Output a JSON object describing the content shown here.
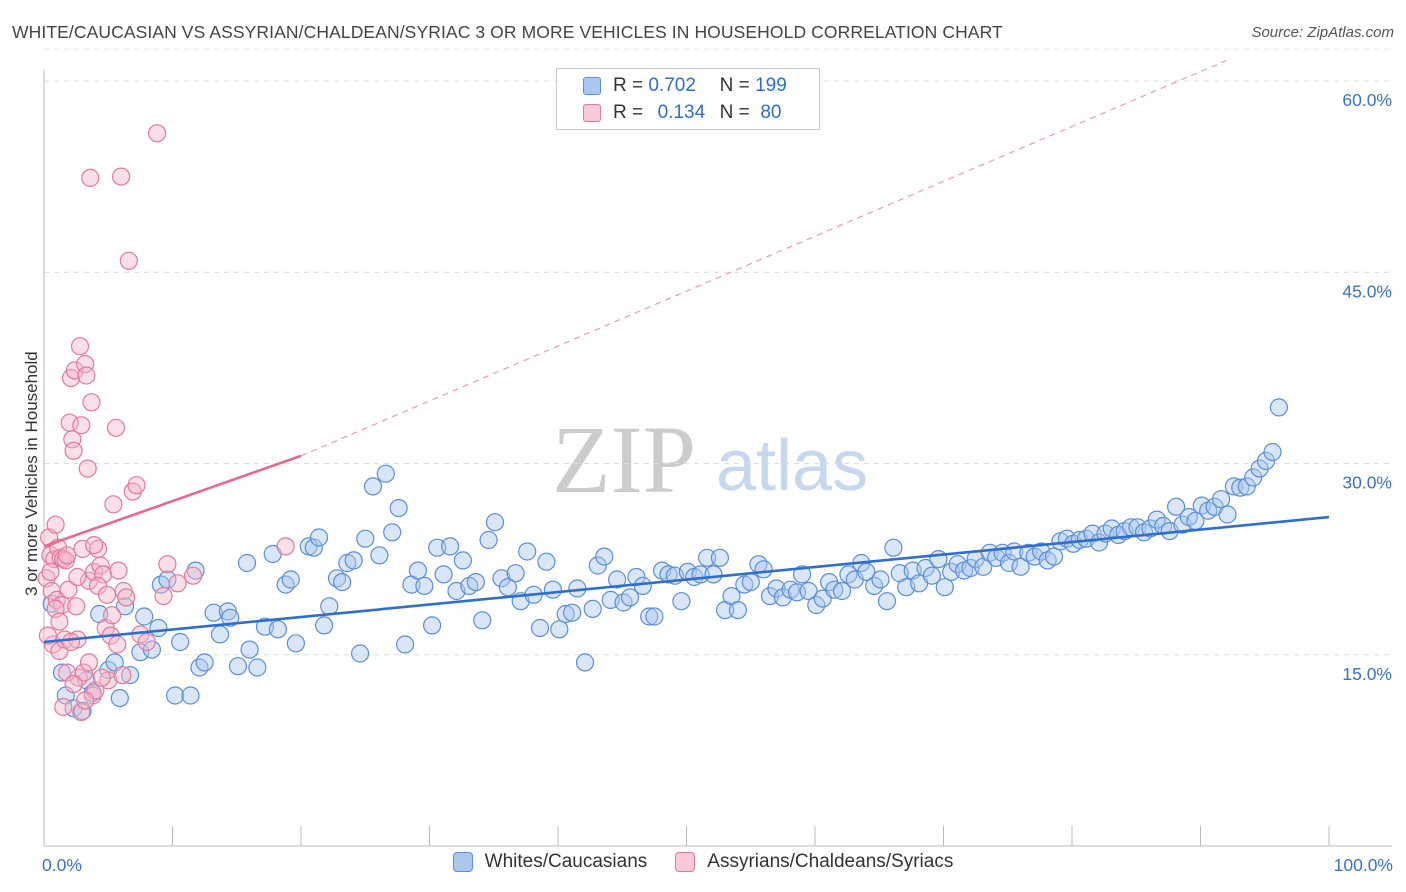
{
  "title": "WHITE/CAUCASIAN VS ASSYRIAN/CHALDEAN/SYRIAC 3 OR MORE VEHICLES IN HOUSEHOLD CORRELATION CHART",
  "source": "Source: ZipAtlas.com",
  "watermark": {
    "zip": "ZIP",
    "atlas": "atlas"
  },
  "legend_top": [
    {
      "r_label": "R =",
      "r_value": "0.702",
      "n_label": "N =",
      "n_value": "199"
    },
    {
      "r_label": "R =",
      "r_value": "0.134",
      "n_label": "N =",
      "n_value": "80"
    }
  ],
  "chart_data": {
    "type": "scatter",
    "title": "WHITE/CAUCASIAN VS ASSYRIAN/CHALDEAN/SYRIAC 3 OR MORE VEHICLES IN HOUSEHOLD CORRELATION CHART",
    "xlabel": "",
    "ylabel": "3 or more Vehicles in Household",
    "xlim": [
      0,
      100
    ],
    "ylim": [
      0,
      64
    ],
    "x_tick_labels": [
      "0.0%",
      "100.0%"
    ],
    "y_ticks": [
      15,
      30,
      45,
      60
    ],
    "y_tick_labels": [
      "15.0%",
      "30.0%",
      "45.0%",
      "60.0%"
    ],
    "grid": "horizontal dashed",
    "legend_position": "bottom",
    "series": [
      {
        "name": "Whites/Caucasians",
        "color": "#5b8ed8",
        "fill": "#aac7ef",
        "trend": {
          "x": [
            0,
            100
          ],
          "y": [
            16.0,
            25.8
          ],
          "style": "solid"
        },
        "points": [
          [
            0.6,
            19.0
          ],
          [
            1.4,
            13.6
          ],
          [
            1.7,
            11.8
          ],
          [
            2.3,
            10.8
          ],
          [
            3.0,
            10.6
          ],
          [
            3.3,
            13.0
          ],
          [
            3.8,
            12.0
          ],
          [
            4.3,
            18.2
          ],
          [
            5.0,
            13.8
          ],
          [
            5.5,
            14.4
          ],
          [
            5.9,
            11.6
          ],
          [
            6.3,
            18.8
          ],
          [
            6.7,
            13.4
          ],
          [
            7.5,
            15.2
          ],
          [
            7.8,
            18.0
          ],
          [
            8.4,
            15.4
          ],
          [
            8.9,
            17.1
          ],
          [
            9.1,
            20.5
          ],
          [
            9.6,
            20.9
          ],
          [
            10.2,
            11.8
          ],
          [
            10.6,
            16.0
          ],
          [
            11.4,
            11.8
          ],
          [
            11.8,
            21.6
          ],
          [
            12.1,
            14.0
          ],
          [
            12.5,
            14.4
          ],
          [
            13.2,
            18.3
          ],
          [
            13.7,
            16.6
          ],
          [
            14.3,
            18.4
          ],
          [
            14.5,
            17.9
          ],
          [
            15.1,
            14.1
          ],
          [
            15.8,
            22.2
          ],
          [
            16.0,
            15.4
          ],
          [
            16.6,
            14.0
          ],
          [
            17.2,
            17.2
          ],
          [
            17.8,
            22.9
          ],
          [
            18.2,
            17.0
          ],
          [
            18.8,
            20.5
          ],
          [
            19.2,
            20.9
          ],
          [
            19.6,
            15.9
          ],
          [
            20.6,
            23.5
          ],
          [
            21.0,
            23.4
          ],
          [
            21.4,
            24.2
          ],
          [
            21.8,
            17.3
          ],
          [
            22.2,
            18.8
          ],
          [
            22.8,
            21.0
          ],
          [
            23.2,
            20.7
          ],
          [
            23.6,
            22.2
          ],
          [
            24.1,
            22.4
          ],
          [
            24.6,
            15.1
          ],
          [
            25.0,
            24.1
          ],
          [
            25.6,
            28.2
          ],
          [
            26.1,
            22.8
          ],
          [
            26.6,
            29.2
          ],
          [
            27.1,
            24.6
          ],
          [
            27.6,
            26.5
          ],
          [
            28.1,
            15.8
          ],
          [
            28.6,
            20.5
          ],
          [
            29.1,
            21.6
          ],
          [
            29.6,
            20.4
          ],
          [
            30.2,
            17.3
          ],
          [
            30.6,
            23.4
          ],
          [
            31.1,
            21.3
          ],
          [
            31.6,
            23.5
          ],
          [
            32.1,
            20.0
          ],
          [
            32.6,
            22.4
          ],
          [
            33.1,
            20.4
          ],
          [
            33.6,
            20.7
          ],
          [
            34.1,
            17.7
          ],
          [
            34.6,
            24.0
          ],
          [
            35.1,
            25.4
          ],
          [
            35.6,
            21.0
          ],
          [
            36.1,
            20.3
          ],
          [
            36.7,
            21.4
          ],
          [
            37.1,
            19.2
          ],
          [
            37.6,
            23.1
          ],
          [
            38.1,
            19.7
          ],
          [
            38.6,
            17.1
          ],
          [
            39.1,
            22.3
          ],
          [
            39.6,
            20.1
          ],
          [
            40.1,
            17.0
          ],
          [
            40.6,
            18.2
          ],
          [
            41.1,
            18.3
          ],
          [
            41.5,
            20.2
          ],
          [
            42.1,
            14.4
          ],
          [
            42.7,
            18.6
          ],
          [
            43.1,
            22.0
          ],
          [
            43.6,
            22.7
          ],
          [
            44.1,
            19.3
          ],
          [
            44.6,
            20.9
          ],
          [
            45.1,
            19.1
          ],
          [
            45.6,
            19.5
          ],
          [
            46.1,
            21.1
          ],
          [
            46.6,
            20.4
          ],
          [
            47.1,
            18.0
          ],
          [
            47.5,
            18.0
          ],
          [
            48.1,
            21.6
          ],
          [
            48.6,
            21.3
          ],
          [
            49.1,
            21.2
          ],
          [
            49.6,
            19.2
          ],
          [
            50.1,
            21.5
          ],
          [
            50.6,
            21.1
          ],
          [
            51.1,
            21.3
          ],
          [
            51.6,
            22.6
          ],
          [
            52.1,
            21.3
          ],
          [
            52.6,
            22.6
          ],
          [
            53.0,
            18.5
          ],
          [
            53.5,
            19.6
          ],
          [
            54.0,
            18.5
          ],
          [
            54.5,
            20.5
          ],
          [
            55.0,
            20.7
          ],
          [
            55.6,
            22.1
          ],
          [
            56.0,
            21.7
          ],
          [
            56.5,
            19.6
          ],
          [
            57.0,
            20.2
          ],
          [
            57.5,
            19.5
          ],
          [
            58.1,
            20.1
          ],
          [
            58.6,
            19.9
          ],
          [
            59.0,
            21.3
          ],
          [
            59.5,
            20.0
          ],
          [
            60.1,
            18.9
          ],
          [
            60.6,
            19.4
          ],
          [
            61.1,
            20.7
          ],
          [
            61.5,
            20.1
          ],
          [
            62.1,
            20.0
          ],
          [
            62.6,
            21.3
          ],
          [
            63.1,
            20.9
          ],
          [
            63.6,
            22.2
          ],
          [
            64.0,
            21.5
          ],
          [
            64.6,
            20.4
          ],
          [
            65.1,
            20.9
          ],
          [
            65.6,
            19.2
          ],
          [
            66.1,
            23.4
          ],
          [
            66.6,
            21.4
          ],
          [
            67.1,
            20.3
          ],
          [
            67.6,
            21.6
          ],
          [
            68.1,
            20.6
          ],
          [
            68.6,
            21.8
          ],
          [
            69.1,
            21.2
          ],
          [
            69.6,
            22.5
          ],
          [
            70.1,
            20.3
          ],
          [
            70.6,
            21.5
          ],
          [
            71.1,
            22.1
          ],
          [
            71.6,
            21.6
          ],
          [
            72.1,
            21.8
          ],
          [
            72.5,
            22.5
          ],
          [
            73.1,
            21.9
          ],
          [
            73.6,
            23.0
          ],
          [
            74.1,
            22.6
          ],
          [
            74.6,
            23.0
          ],
          [
            75.1,
            22.2
          ],
          [
            75.5,
            23.1
          ],
          [
            76.0,
            21.9
          ],
          [
            76.6,
            23.0
          ],
          [
            77.1,
            22.7
          ],
          [
            77.6,
            23.1
          ],
          [
            78.1,
            22.4
          ],
          [
            78.6,
            22.7
          ],
          [
            79.1,
            23.9
          ],
          [
            79.6,
            24.1
          ],
          [
            80.1,
            23.7
          ],
          [
            80.6,
            24.0
          ],
          [
            81.1,
            24.1
          ],
          [
            81.6,
            24.5
          ],
          [
            82.1,
            23.8
          ],
          [
            82.6,
            24.5
          ],
          [
            83.1,
            24.9
          ],
          [
            83.6,
            24.4
          ],
          [
            84.1,
            24.7
          ],
          [
            84.6,
            25.0
          ],
          [
            85.1,
            25.0
          ],
          [
            85.6,
            24.6
          ],
          [
            86.1,
            24.9
          ],
          [
            86.6,
            25.6
          ],
          [
            87.1,
            25.1
          ],
          [
            87.6,
            24.7
          ],
          [
            88.1,
            26.6
          ],
          [
            88.6,
            25.2
          ],
          [
            89.1,
            25.8
          ],
          [
            89.6,
            25.5
          ],
          [
            90.1,
            26.7
          ],
          [
            90.6,
            26.3
          ],
          [
            91.1,
            26.6
          ],
          [
            91.6,
            27.2
          ],
          [
            92.1,
            26.0
          ],
          [
            92.6,
            28.2
          ],
          [
            93.1,
            28.1
          ],
          [
            93.6,
            28.2
          ],
          [
            94.1,
            28.9
          ],
          [
            94.6,
            29.6
          ],
          [
            95.1,
            30.2
          ],
          [
            95.6,
            30.9
          ],
          [
            96.1,
            34.4
          ]
        ]
      },
      {
        "name": "Assyrians/Chaldeans/Syriacs",
        "color": "#e07b9b",
        "fill": "#f5b7ca",
        "trend": {
          "x": [
            0,
            20
          ],
          "y": [
            23.5,
            30.6
          ],
          "style": "solid",
          "extension": {
            "x": [
              20,
              92
            ],
            "y": [
              30.6,
              61.6
            ],
            "style": "dashed"
          }
        },
        "points": [
          [
            0.2,
            21.0
          ],
          [
            0.4,
            24.2
          ],
          [
            0.5,
            22.8
          ],
          [
            0.6,
            20.0
          ],
          [
            0.7,
            15.8
          ],
          [
            0.8,
            22.5
          ],
          [
            0.9,
            25.2
          ],
          [
            1.0,
            19.3
          ],
          [
            1.1,
            23.4
          ],
          [
            1.2,
            15.3
          ],
          [
            1.3,
            22.6
          ],
          [
            1.4,
            18.9
          ],
          [
            1.5,
            22.5
          ],
          [
            1.6,
            16.2
          ],
          [
            1.7,
            22.4
          ],
          [
            1.8,
            22.8
          ],
          [
            1.9,
            20.1
          ],
          [
            2.0,
            33.2
          ],
          [
            2.1,
            36.7
          ],
          [
            2.2,
            31.9
          ],
          [
            2.3,
            31.0
          ],
          [
            2.4,
            37.3
          ],
          [
            2.5,
            18.8
          ],
          [
            2.6,
            16.2
          ],
          [
            2.7,
            13.2
          ],
          [
            2.8,
            39.2
          ],
          [
            2.9,
            33.0
          ],
          [
            3.0,
            23.3
          ],
          [
            3.1,
            13.6
          ],
          [
            3.2,
            37.8
          ],
          [
            3.3,
            36.9
          ],
          [
            3.4,
            29.6
          ],
          [
            3.5,
            20.8
          ],
          [
            3.6,
            52.4
          ],
          [
            3.7,
            34.8
          ],
          [
            3.8,
            11.8
          ],
          [
            3.9,
            21.5
          ],
          [
            4.0,
            12.2
          ],
          [
            4.2,
            23.3
          ],
          [
            4.4,
            22.0
          ],
          [
            4.6,
            21.3
          ],
          [
            4.8,
            17.1
          ],
          [
            5.0,
            13.0
          ],
          [
            5.2,
            16.5
          ],
          [
            5.4,
            26.8
          ],
          [
            5.6,
            32.8
          ],
          [
            5.8,
            21.6
          ],
          [
            6.0,
            52.5
          ],
          [
            6.2,
            20.0
          ],
          [
            6.4,
            19.5
          ],
          [
            6.6,
            45.9
          ],
          [
            6.9,
            27.8
          ],
          [
            7.2,
            28.3
          ],
          [
            7.5,
            16.6
          ],
          [
            8.0,
            16.0
          ],
          [
            8.8,
            55.9
          ],
          [
            9.3,
            19.6
          ],
          [
            9.6,
            22.1
          ],
          [
            10.4,
            20.6
          ],
          [
            11.6,
            21.2
          ],
          [
            18.8,
            23.5
          ],
          [
            0.3,
            16.5
          ],
          [
            0.5,
            21.5
          ],
          [
            0.9,
            18.6
          ],
          [
            1.2,
            17.6
          ],
          [
            1.5,
            10.9
          ],
          [
            1.8,
            13.6
          ],
          [
            2.1,
            16.0
          ],
          [
            2.3,
            12.7
          ],
          [
            2.6,
            21.1
          ],
          [
            2.9,
            10.5
          ],
          [
            3.2,
            11.4
          ],
          [
            3.5,
            14.4
          ],
          [
            3.9,
            23.6
          ],
          [
            4.2,
            20.4
          ],
          [
            4.5,
            13.2
          ],
          [
            4.9,
            19.7
          ],
          [
            5.3,
            18.1
          ],
          [
            5.7,
            15.8
          ],
          [
            6.1,
            13.4
          ]
        ]
      }
    ]
  }
}
